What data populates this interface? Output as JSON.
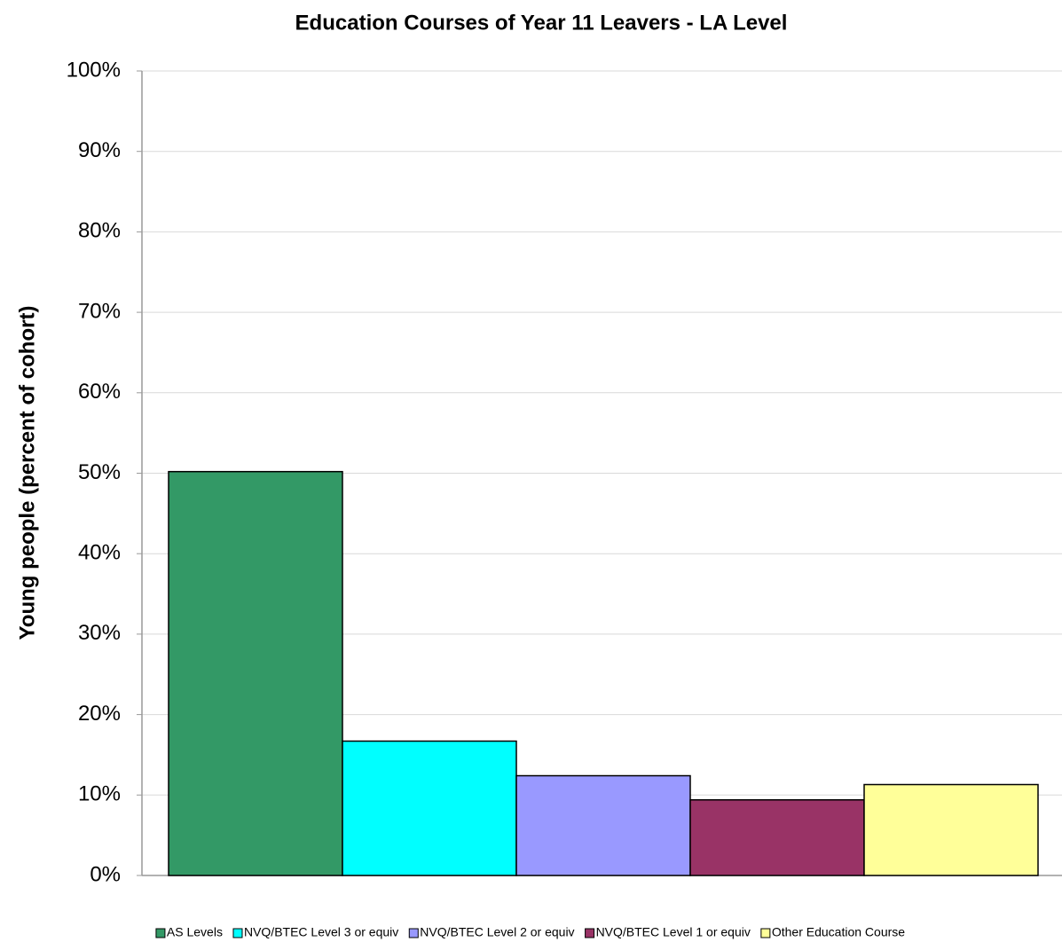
{
  "chart_data": {
    "type": "bar",
    "title": "Education Courses of Year 11 Leavers - LA Level",
    "y_label": "Young people (percent of cohort)",
    "series": [
      {
        "name": "AS Levels",
        "color": "#339966",
        "values": [
          50.2
        ]
      },
      {
        "name": "NVQ/BTEC Level 3 or equiv",
        "color": "#00ffff",
        "values": [
          16.7
        ]
      },
      {
        "name": "NVQ/BTEC Level 2 or equiv",
        "color": "#9999ff",
        "values": [
          12.4
        ]
      },
      {
        "name": "NVQ/BTEC Level 1 or equiv",
        "color": "#993366",
        "values": [
          9.4
        ]
      },
      {
        "name": "Other Education Course",
        "color": "#ffff99",
        "values": [
          11.3
        ]
      }
    ],
    "ylim": [
      0,
      100
    ],
    "yticks": [
      {
        "value": 0,
        "label": "0%"
      },
      {
        "value": 10,
        "label": "10%"
      },
      {
        "value": 20,
        "label": "20%"
      },
      {
        "value": 30,
        "label": "30%"
      },
      {
        "value": 40,
        "label": "40%"
      },
      {
        "value": 50,
        "label": "50%"
      },
      {
        "value": 60,
        "label": "60%"
      },
      {
        "value": 70,
        "label": "70%"
      },
      {
        "value": 80,
        "label": "80%"
      },
      {
        "value": 90,
        "label": "90%"
      },
      {
        "value": 100,
        "label": "100%"
      }
    ],
    "grid": true,
    "legend": "bottom"
  }
}
